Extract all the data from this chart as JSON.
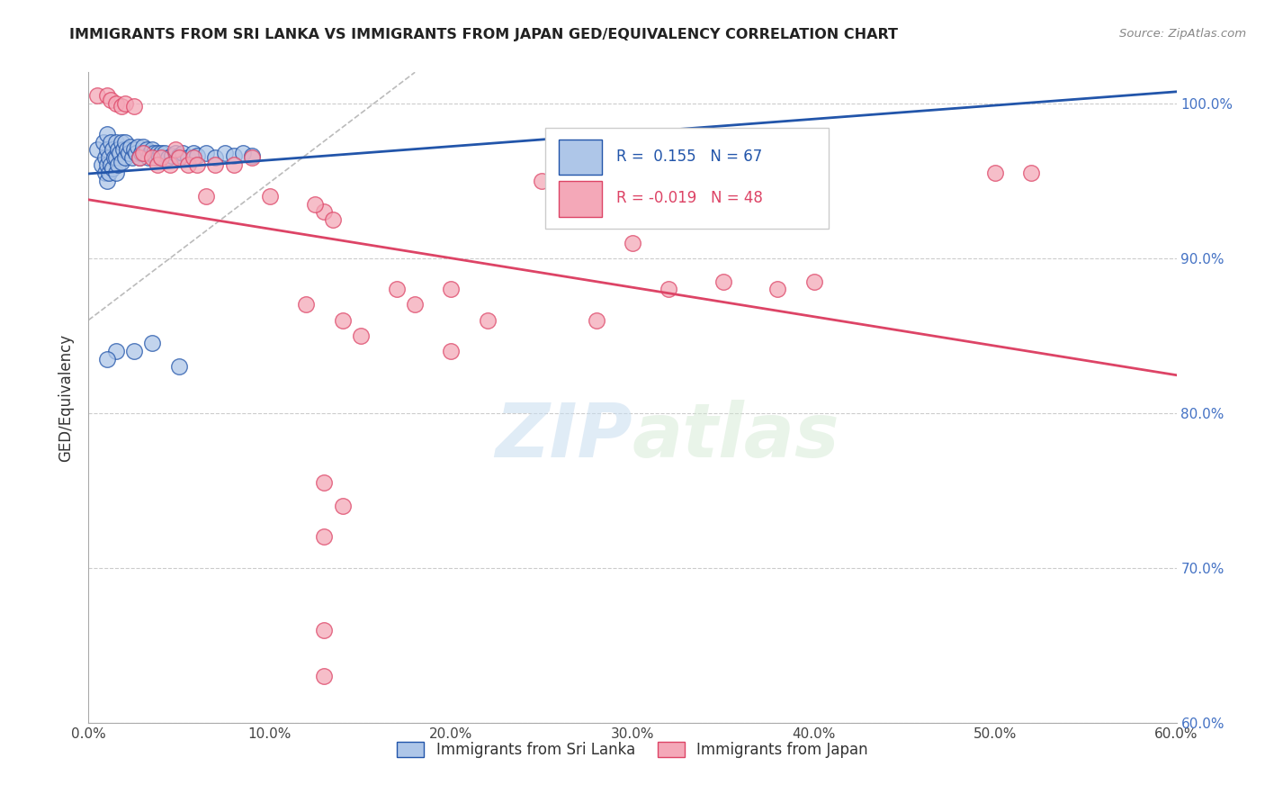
{
  "title": "IMMIGRANTS FROM SRI LANKA VS IMMIGRANTS FROM JAPAN GED/EQUIVALENCY CORRELATION CHART",
  "source": "Source: ZipAtlas.com",
  "ylabel_label": "GED/Equivalency",
  "xlim": [
    0.0,
    0.6
  ],
  "ylim": [
    0.6,
    1.02
  ],
  "color_sri_lanka": "#aec6e8",
  "color_japan": "#f4a8b8",
  "color_trend_sri_lanka": "#2255aa",
  "color_trend_japan": "#dd4466",
  "color_diagonal": "#bbbbbb",
  "watermark_zip": "ZIP",
  "watermark_atlas": "atlas",
  "sri_lanka_x": [
    0.005,
    0.007,
    0.008,
    0.009,
    0.009,
    0.01,
    0.01,
    0.01,
    0.01,
    0.011,
    0.011,
    0.012,
    0.012,
    0.013,
    0.013,
    0.014,
    0.015,
    0.015,
    0.015,
    0.016,
    0.016,
    0.017,
    0.018,
    0.018,
    0.019,
    0.02,
    0.02,
    0.021,
    0.022,
    0.023,
    0.024,
    0.025,
    0.026,
    0.027,
    0.028,
    0.029,
    0.03,
    0.031,
    0.032,
    0.033,
    0.034,
    0.035,
    0.036,
    0.037,
    0.038,
    0.039,
    0.04,
    0.042,
    0.044,
    0.046,
    0.048,
    0.05,
    0.052,
    0.055,
    0.058,
    0.06,
    0.065,
    0.07,
    0.075,
    0.08,
    0.085,
    0.09,
    0.05,
    0.035,
    0.025,
    0.015,
    0.01
  ],
  "sri_lanka_y": [
    0.97,
    0.96,
    0.975,
    0.965,
    0.955,
    0.98,
    0.97,
    0.96,
    0.95,
    0.965,
    0.955,
    0.975,
    0.96,
    0.97,
    0.958,
    0.965,
    0.975,
    0.965,
    0.955,
    0.97,
    0.96,
    0.968,
    0.975,
    0.962,
    0.97,
    0.975,
    0.965,
    0.97,
    0.968,
    0.972,
    0.965,
    0.97,
    0.968,
    0.972,
    0.965,
    0.968,
    0.972,
    0.968,
    0.97,
    0.965,
    0.968,
    0.97,
    0.968,
    0.965,
    0.968,
    0.966,
    0.968,
    0.968,
    0.965,
    0.966,
    0.968,
    0.966,
    0.968,
    0.965,
    0.968,
    0.966,
    0.968,
    0.965,
    0.968,
    0.966,
    0.968,
    0.966,
    0.83,
    0.845,
    0.84,
    0.84,
    0.835
  ],
  "japan_x": [
    0.005,
    0.01,
    0.012,
    0.015,
    0.018,
    0.02,
    0.025,
    0.028,
    0.03,
    0.035,
    0.038,
    0.04,
    0.045,
    0.048,
    0.05,
    0.055,
    0.058,
    0.06,
    0.065,
    0.07,
    0.08,
    0.09,
    0.1,
    0.12,
    0.14,
    0.15,
    0.17,
    0.18,
    0.2,
    0.22,
    0.25,
    0.28,
    0.3,
    0.32,
    0.35,
    0.38,
    0.4,
    0.5,
    0.52,
    0.13,
    0.135,
    0.125,
    0.13,
    0.2,
    0.13,
    0.13,
    0.14,
    0.13
  ],
  "japan_y": [
    1.005,
    1.005,
    1.002,
    1.0,
    0.998,
    1.0,
    0.998,
    0.965,
    0.968,
    0.965,
    0.96,
    0.965,
    0.96,
    0.97,
    0.965,
    0.96,
    0.965,
    0.96,
    0.94,
    0.96,
    0.96,
    0.965,
    0.94,
    0.87,
    0.86,
    0.85,
    0.88,
    0.87,
    0.84,
    0.86,
    0.95,
    0.86,
    0.91,
    0.88,
    0.885,
    0.88,
    0.885,
    0.955,
    0.955,
    0.93,
    0.925,
    0.935,
    0.72,
    0.88,
    0.66,
    0.63,
    0.74,
    0.755
  ]
}
